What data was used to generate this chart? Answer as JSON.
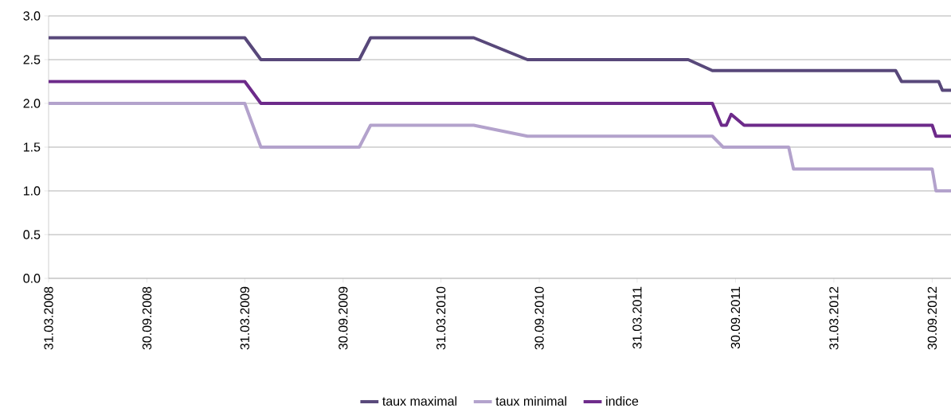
{
  "chart_data": {
    "type": "line",
    "series": [
      {
        "name": "taux maximal",
        "color": "#58487a",
        "x": [
          "2008-03-31",
          "2009-03-31",
          "2009-04-30",
          "2009-10-30",
          "2009-11-20",
          "2010-05-31",
          "2010-09-08",
          "2011-07-04",
          "2011-08-18",
          "2012-07-24",
          "2012-08-04",
          "2012-10-12",
          "2012-10-19",
          "2012-11-04"
        ],
        "values": [
          2.75,
          2.75,
          2.5,
          2.5,
          2.75,
          2.75,
          2.5,
          2.5,
          2.375,
          2.375,
          2.25,
          2.25,
          2.15,
          2.15
        ]
      },
      {
        "name": "taux minimal",
        "color": "#b3a2cc",
        "x": [
          "2008-03-31",
          "2009-03-31",
          "2009-04-30",
          "2009-10-30",
          "2009-11-20",
          "2010-05-31",
          "2010-09-08",
          "2011-08-18",
          "2011-09-07",
          "2012-01-07",
          "2012-01-16",
          "2012-09-30",
          "2012-10-07",
          "2012-11-04"
        ],
        "values": [
          2.0,
          2.0,
          1.5,
          1.5,
          1.75,
          1.75,
          1.625,
          1.625,
          1.5,
          1.5,
          1.25,
          1.25,
          1.0,
          1.0
        ]
      },
      {
        "name": "indice",
        "color": "#6d2a8a",
        "x": [
          "2008-03-31",
          "2009-03-31",
          "2009-04-30",
          "2011-08-18",
          "2011-09-04",
          "2011-09-13",
          "2011-09-22",
          "2011-10-16",
          "2012-09-30",
          "2012-10-07",
          "2012-11-04"
        ],
        "values": [
          2.25,
          2.25,
          2.0,
          2.0,
          1.75,
          1.75,
          1.875,
          1.75,
          1.75,
          1.625,
          1.625
        ]
      }
    ],
    "xlim": [
      "2008-03-31",
      "2012-11-04"
    ],
    "xticks": [
      {
        "value": "2008-03-31",
        "label": "31.03.2008"
      },
      {
        "value": "2008-09-30",
        "label": "30.09.2008"
      },
      {
        "value": "2009-03-31",
        "label": "31.03.2009"
      },
      {
        "value": "2009-09-30",
        "label": "30.09.2009"
      },
      {
        "value": "2010-03-31",
        "label": "31.03.2010"
      },
      {
        "value": "2010-09-30",
        "label": "30.09.2010"
      },
      {
        "value": "2011-03-31",
        "label": "31.03.2011"
      },
      {
        "value": "2011-09-30",
        "label": "30.09.2011"
      },
      {
        "value": "2012-03-31",
        "label": "31.03.2012"
      },
      {
        "value": "2012-09-30",
        "label": "30.09.2012"
      }
    ],
    "ylim": [
      0,
      3
    ],
    "yticks": [
      {
        "value": 0,
        "label": "0.0"
      },
      {
        "value": 0.5,
        "label": "0.5"
      },
      {
        "value": 1,
        "label": "1.0"
      },
      {
        "value": 1.5,
        "label": "1.5"
      },
      {
        "value": 2,
        "label": "2.0"
      },
      {
        "value": 2.5,
        "label": "2.5"
      },
      {
        "value": 3,
        "label": "3.0"
      }
    ],
    "grid": "y",
    "legend": "bottom",
    "marker": "none",
    "line_style": "solid"
  }
}
